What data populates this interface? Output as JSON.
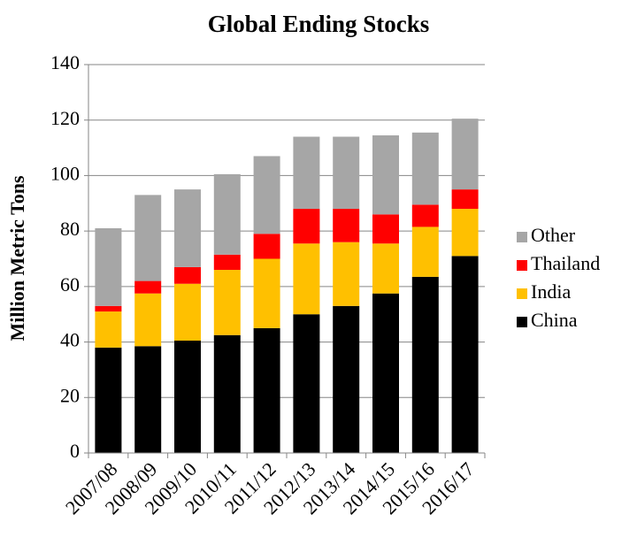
{
  "chart_data": {
    "type": "stacked_bar",
    "title": "Global Ending Stocks",
    "y_label": "Million Metric Tons",
    "categories": [
      "2007/08",
      "2008/09",
      "2009/10",
      "2010/11",
      "2011/12",
      "2012/13",
      "2013/14",
      "2014/15",
      "2015/16",
      "2016/17"
    ],
    "series": [
      {
        "name": "China",
        "color": "#000000",
        "values": [
          38,
          38.5,
          40.5,
          42.5,
          45,
          50,
          53,
          57.5,
          63.5,
          71
        ]
      },
      {
        "name": "India",
        "color": "#ffc000",
        "values": [
          13,
          19,
          20.5,
          23.5,
          25,
          25.5,
          23,
          18,
          18,
          17
        ]
      },
      {
        "name": "Thailand",
        "color": "#ff0000",
        "values": [
          2,
          4.5,
          6,
          5.5,
          9,
          12.5,
          12,
          10.5,
          8,
          7
        ]
      },
      {
        "name": "Other",
        "color": "#a6a6a6",
        "values": [
          28,
          31,
          28,
          29,
          28,
          26,
          26,
          28.5,
          26,
          25.5
        ]
      }
    ],
    "ylim": [
      0,
      140
    ],
    "yticks": [
      0,
      20,
      40,
      60,
      80,
      100,
      120,
      140
    ],
    "grid": true,
    "legend": "right"
  }
}
